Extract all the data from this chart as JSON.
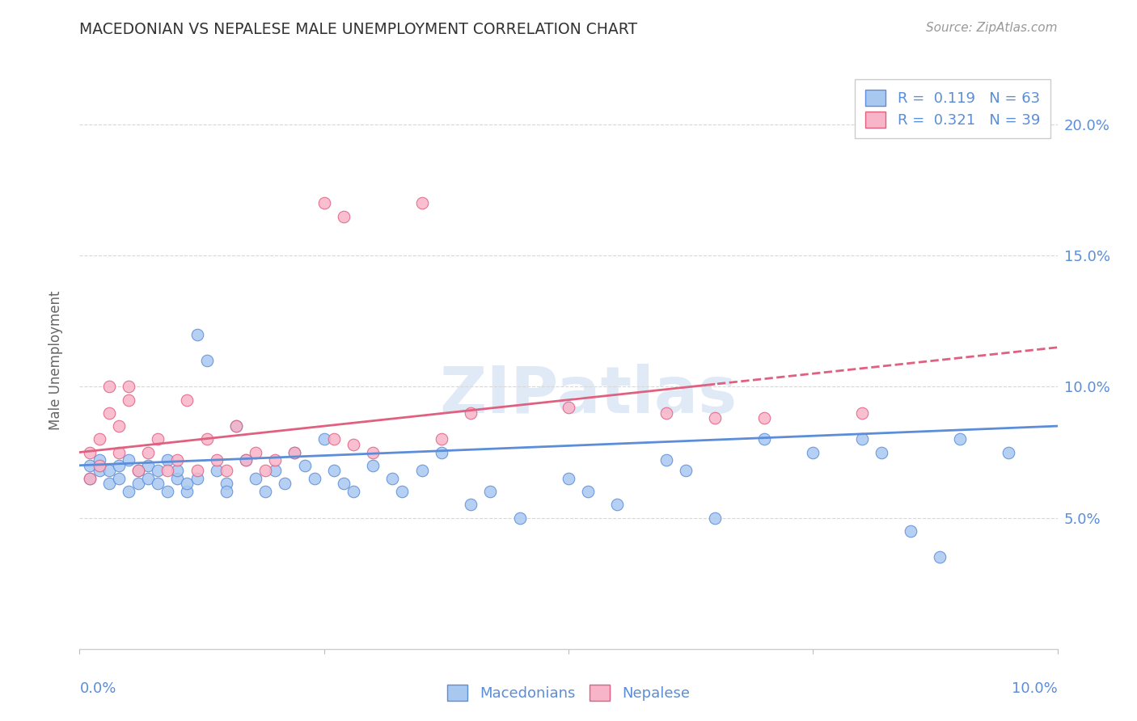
{
  "title": "MACEDONIAN VS NEPALESE MALE UNEMPLOYMENT CORRELATION CHART",
  "source": "Source: ZipAtlas.com",
  "ylabel": "Male Unemployment",
  "R_mac": 0.119,
  "N_mac": 63,
  "R_nep": 0.321,
  "N_nep": 39,
  "x_min": 0.0,
  "x_max": 0.1,
  "y_min": 0.0,
  "y_max": 0.22,
  "yticks": [
    0.05,
    0.1,
    0.15,
    0.2
  ],
  "watermark": "ZIPatlas",
  "color_mac_fill": "#a8c8f0",
  "color_mac_edge": "#5b8dd9",
  "color_nep_fill": "#f8b4c8",
  "color_nep_edge": "#e06080",
  "color_mac_line": "#5b8dd9",
  "color_nep_line": "#e06080",
  "color_axis_text": "#5b8dd9",
  "background_color": "#ffffff",
  "grid_color": "#d8d8d8",
  "mac_x": [
    0.001,
    0.001,
    0.002,
    0.002,
    0.003,
    0.003,
    0.004,
    0.004,
    0.005,
    0.005,
    0.006,
    0.006,
    0.007,
    0.007,
    0.008,
    0.008,
    0.009,
    0.009,
    0.01,
    0.01,
    0.011,
    0.011,
    0.012,
    0.012,
    0.013,
    0.014,
    0.015,
    0.015,
    0.016,
    0.017,
    0.018,
    0.019,
    0.02,
    0.021,
    0.022,
    0.023,
    0.024,
    0.025,
    0.026,
    0.027,
    0.028,
    0.03,
    0.032,
    0.033,
    0.035,
    0.037,
    0.04,
    0.042,
    0.045,
    0.05,
    0.052,
    0.055,
    0.06,
    0.062,
    0.065,
    0.07,
    0.075,
    0.08,
    0.082,
    0.085,
    0.088,
    0.09,
    0.095
  ],
  "mac_y": [
    0.065,
    0.07,
    0.068,
    0.072,
    0.063,
    0.068,
    0.07,
    0.065,
    0.06,
    0.072,
    0.068,
    0.063,
    0.07,
    0.065,
    0.068,
    0.063,
    0.06,
    0.072,
    0.065,
    0.068,
    0.06,
    0.063,
    0.12,
    0.065,
    0.11,
    0.068,
    0.063,
    0.06,
    0.085,
    0.072,
    0.065,
    0.06,
    0.068,
    0.063,
    0.075,
    0.07,
    0.065,
    0.08,
    0.068,
    0.063,
    0.06,
    0.07,
    0.065,
    0.06,
    0.068,
    0.075,
    0.055,
    0.06,
    0.05,
    0.065,
    0.06,
    0.055,
    0.072,
    0.068,
    0.05,
    0.08,
    0.075,
    0.08,
    0.075,
    0.045,
    0.035,
    0.08,
    0.075
  ],
  "nep_x": [
    0.001,
    0.001,
    0.002,
    0.002,
    0.003,
    0.003,
    0.004,
    0.004,
    0.005,
    0.005,
    0.006,
    0.007,
    0.008,
    0.009,
    0.01,
    0.011,
    0.012,
    0.013,
    0.014,
    0.015,
    0.016,
    0.017,
    0.018,
    0.019,
    0.02,
    0.022,
    0.025,
    0.026,
    0.027,
    0.028,
    0.03,
    0.035,
    0.037,
    0.04,
    0.05,
    0.06,
    0.065,
    0.07,
    0.08
  ],
  "nep_y": [
    0.065,
    0.075,
    0.08,
    0.07,
    0.1,
    0.09,
    0.075,
    0.085,
    0.095,
    0.1,
    0.068,
    0.075,
    0.08,
    0.068,
    0.072,
    0.095,
    0.068,
    0.08,
    0.072,
    0.068,
    0.085,
    0.072,
    0.075,
    0.068,
    0.072,
    0.075,
    0.17,
    0.08,
    0.165,
    0.078,
    0.075,
    0.17,
    0.08,
    0.09,
    0.092,
    0.09,
    0.088,
    0.088,
    0.09
  ]
}
